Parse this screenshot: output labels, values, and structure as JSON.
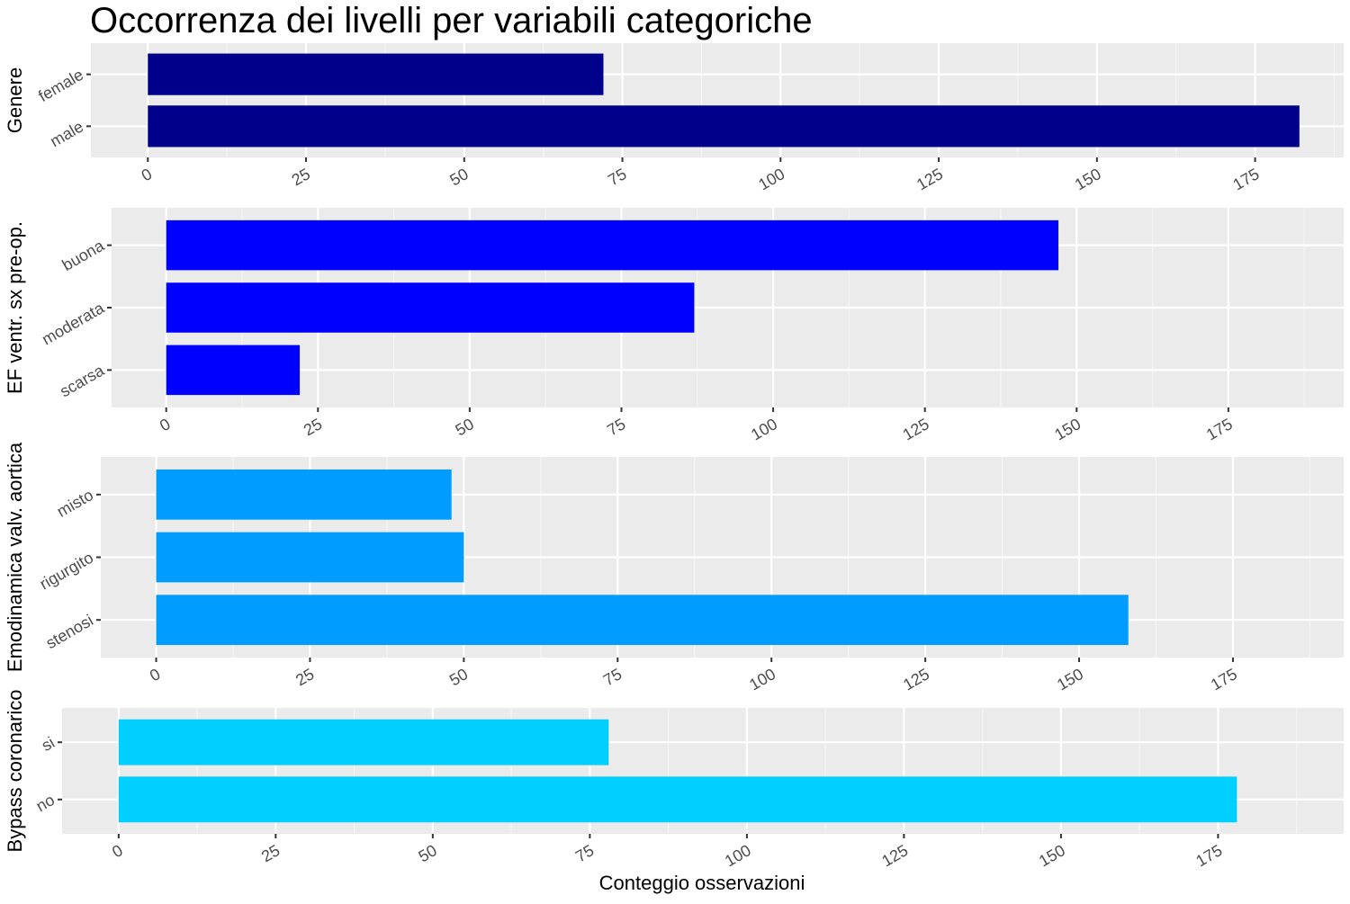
{
  "chart_data": {
    "type": "bar",
    "orientation": "horizontal",
    "title": "Occorrenza dei livelli per variabili categoriche",
    "xlabel": "Conteggio osservazioni",
    "grid": true,
    "xticks": [
      "0",
      "25",
      "50",
      "75",
      "100",
      "125",
      "150",
      "175"
    ],
    "panels": [
      {
        "ylabel": "Genere",
        "color": "#00008B",
        "xlim": [
          -9,
          189
        ],
        "categories": [
          "female",
          "male"
        ],
        "values": [
          72,
          182
        ]
      },
      {
        "ylabel": "EF ventr. sx pre-op.",
        "color": "#0000FF",
        "xlim": [
          -9,
          194
        ],
        "categories": [
          "buona",
          "moderata",
          "scarsa"
        ],
        "values": [
          147,
          87,
          22
        ]
      },
      {
        "ylabel": "Emodinamica valv. aortica",
        "color": "#009CFF",
        "xlim": [
          -9,
          193
        ],
        "categories": [
          "misto",
          "rigurgito",
          "stenosi"
        ],
        "values": [
          48,
          50,
          158
        ]
      },
      {
        "ylabel": "Bypass coronarico",
        "color": "#00CFFF",
        "xlim": [
          -9,
          195
        ],
        "categories": [
          "si",
          "no"
        ],
        "values": [
          78,
          178
        ]
      }
    ]
  }
}
